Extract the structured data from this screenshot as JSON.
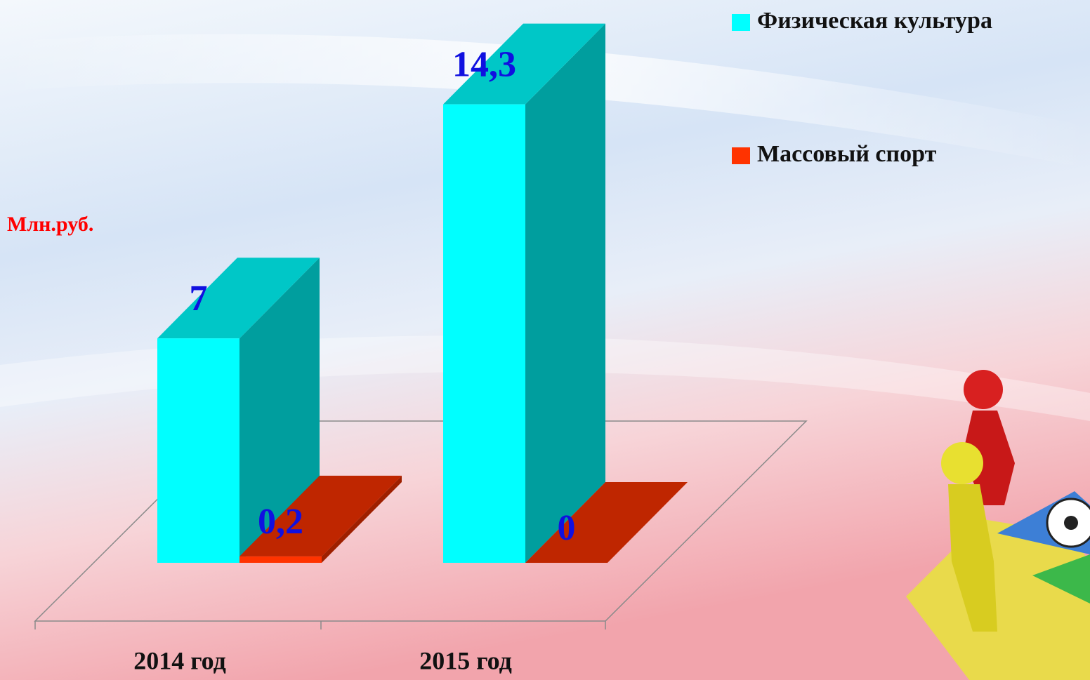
{
  "chart_data": {
    "type": "bar3d",
    "y_label": "Млн.руб.",
    "categories": [
      "2014 год",
      "2015 год"
    ],
    "series": [
      {
        "name": "Физическая культура",
        "color": "#00ffff",
        "values": [
          7,
          14.3
        ],
        "value_labels": [
          "7",
          "14,3"
        ]
      },
      {
        "name": "Массовый спорт",
        "color": "#ff3300",
        "values": [
          0.2,
          0
        ],
        "value_labels": [
          "0,2",
          "0"
        ]
      }
    ],
    "ylim": [
      0,
      16
    ],
    "legend": "top-right"
  }
}
